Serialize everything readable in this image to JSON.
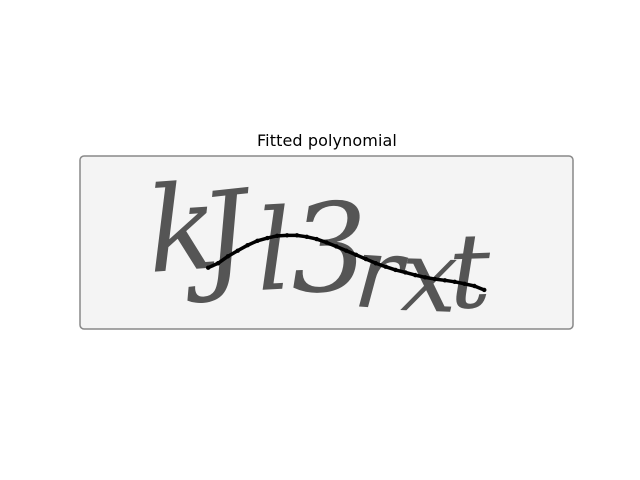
{
  "chart_data": {
    "type": "line",
    "title": "Fitted polynomial",
    "xlabel": "",
    "ylabel": "",
    "grid": false,
    "axes_visible": false,
    "background_image": {
      "description_text": "kJl3rxt",
      "background_color": "#f4f4f4",
      "text_color": "#555555"
    },
    "image_size": [
      200,
      70
    ],
    "xlim": [
      0,
      200
    ],
    "ylim": [
      70,
      0
    ],
    "series": [
      {
        "color": "#000000",
        "x": [
          52,
          56,
          60,
          64,
          68,
          72,
          76,
          80,
          84,
          88,
          92,
          96,
          100,
          104,
          108,
          112,
          116,
          120,
          124,
          128,
          132,
          136,
          140,
          144,
          148,
          152,
          156,
          160,
          164
        ],
        "y": [
          45.2,
          43.4,
          40.6,
          38.3,
          36.1,
          34.3,
          33.2,
          32.3,
          32.1,
          32.1,
          32.7,
          33.6,
          35.0,
          36.6,
          38.3,
          40.0,
          41.7,
          43.4,
          44.8,
          46.1,
          47.1,
          48.2,
          49.1,
          49.8,
          50.3,
          50.9,
          51.7,
          52.6,
          54.2
        ]
      }
    ]
  }
}
